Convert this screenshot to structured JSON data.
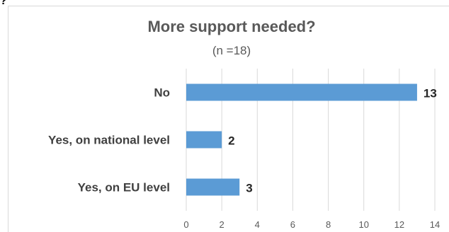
{
  "corner_glyph": "?",
  "colors": {
    "bar": "#5b9bd5",
    "grid": "#d9d9d9",
    "title": "#595959",
    "category_text": "#404040",
    "tick_text": "#595959",
    "value_text": "#262626"
  },
  "chart_data": {
    "type": "bar",
    "orientation": "horizontal",
    "title": "More support needed?",
    "subtitle": "(n =18)",
    "categories": [
      "No",
      "Yes, on national level",
      "Yes, on EU level"
    ],
    "values": [
      13,
      2,
      3
    ],
    "data_labels": [
      "13",
      "2",
      "3"
    ],
    "xlim": [
      0,
      14
    ],
    "x_ticks": [
      "0",
      "2",
      "4",
      "6",
      "8",
      "10",
      "12",
      "14"
    ],
    "grid": "vertical",
    "legend": "none"
  }
}
